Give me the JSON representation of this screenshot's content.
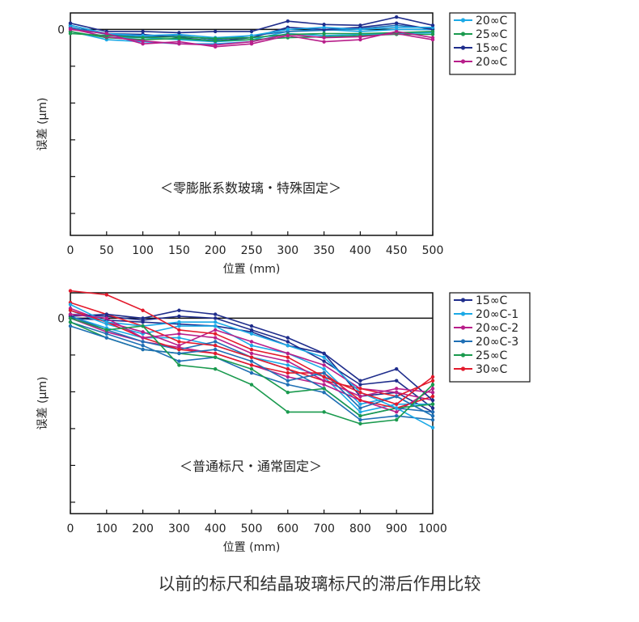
{
  "caption": "以前的标尺和结晶玻璃标尺的滞后作用比较",
  "chart_data": [
    {
      "type": "line",
      "annotation": "＜零膨胀系数玻璃・特殊固定＞",
      "xlabel": "位置 (mm)",
      "ylabel": "误差 (μm)",
      "y_tick_label": "0",
      "x": [
        0,
        50,
        100,
        150,
        200,
        250,
        300,
        350,
        400,
        450,
        500
      ],
      "xlim": [
        0,
        500
      ],
      "ylim": [
        -5,
        0.4
      ],
      "grid": false,
      "legend_position": "right-top",
      "series": [
        {
          "name": "20∞C",
          "color": "#1ba9e6",
          "values": [
            0.1,
            -0.1,
            -0.15,
            -0.12,
            -0.2,
            -0.15,
            0.0,
            0.05,
            0.0,
            0.05,
            0.05
          ]
        },
        {
          "name": "25∞C",
          "color": "#1a9a4e",
          "values": [
            -0.1,
            -0.15,
            -0.2,
            -0.18,
            -0.22,
            -0.2,
            -0.12,
            -0.1,
            -0.1,
            -0.08,
            -0.05
          ]
        },
        {
          "name": "15∞C",
          "color": "#1f2d8c",
          "values": [
            0.15,
            -0.05,
            -0.05,
            -0.08,
            -0.05,
            -0.05,
            0.2,
            0.12,
            0.1,
            0.3,
            0.1
          ]
        },
        {
          "name": "20∞C",
          "color": "#b81e8a",
          "values": [
            0.0,
            -0.1,
            -0.35,
            -0.3,
            -0.42,
            -0.35,
            -0.15,
            -0.3,
            -0.25,
            -0.05,
            -0.2
          ]
        }
      ],
      "extra_traces": [
        {
          "color": "#1ba9e6",
          "values": [
            0.05,
            -0.2,
            -0.2,
            -0.25,
            -0.3,
            -0.25,
            -0.05,
            0.0,
            -0.05,
            0.0,
            0.0
          ]
        },
        {
          "color": "#1ba9e6",
          "values": [
            -0.05,
            -0.25,
            -0.3,
            -0.35,
            -0.35,
            -0.3,
            -0.1,
            -0.15,
            -0.12,
            -0.1,
            -0.08
          ]
        },
        {
          "color": "#1f6fb5",
          "values": [
            0.05,
            -0.12,
            -0.18,
            -0.15,
            -0.25,
            -0.15,
            -0.05,
            -0.02,
            0.02,
            0.1,
            0.02
          ]
        },
        {
          "color": "#1f2d8c",
          "values": [
            0.1,
            -0.1,
            -0.12,
            -0.2,
            -0.28,
            -0.2,
            0.05,
            0.0,
            0.05,
            0.15,
            0.0
          ]
        },
        {
          "color": "#1a9a4e",
          "values": [
            -0.05,
            -0.2,
            -0.25,
            -0.22,
            -0.28,
            -0.25,
            -0.2,
            -0.18,
            -0.15,
            -0.12,
            -0.12
          ]
        },
        {
          "color": "#b81e8a",
          "values": [
            0.02,
            -0.18,
            -0.28,
            -0.35,
            -0.38,
            -0.3,
            -0.12,
            -0.2,
            -0.18,
            -0.1,
            -0.25
          ]
        }
      ]
    },
    {
      "type": "line",
      "annotation": "＜普通标尺・通常固定＞",
      "xlabel": "位置 (mm)",
      "ylabel": "误差 (μm)",
      "y_tick_label": "0",
      "x": [
        0,
        100,
        200,
        300,
        400,
        500,
        600,
        700,
        800,
        900,
        1000
      ],
      "xlim": [
        0,
        1000
      ],
      "ylim": [
        -5,
        0.65
      ],
      "grid": false,
      "legend_position": "right-top",
      "series": [
        {
          "name": "15∞C",
          "color": "#1f2d8c",
          "values": [
            0.05,
            0.1,
            0.0,
            0.2,
            0.1,
            -0.2,
            -0.5,
            -0.9,
            -1.6,
            -1.3,
            -2.1
          ]
        },
        {
          "name": "20∞C-1",
          "color": "#1ba9e6",
          "values": [
            0.35,
            -0.1,
            -0.2,
            -0.1,
            -0.1,
            -0.4,
            -0.7,
            -1.0,
            -1.9,
            -2.3,
            -2.8
          ]
        },
        {
          "name": "20∞C-2",
          "color": "#b81e8a",
          "values": [
            0.1,
            0.0,
            -0.5,
            -0.4,
            -0.5,
            -0.9,
            -1.1,
            -1.6,
            -2.0,
            -1.8,
            -1.9
          ]
        },
        {
          "name": "20∞C-3",
          "color": "#1f6fb5",
          "values": [
            -0.2,
            -0.5,
            -0.8,
            -0.9,
            -0.8,
            -1.1,
            -1.6,
            -1.4,
            -2.3,
            -2.0,
            -2.5
          ]
        },
        {
          "name": "25∞C",
          "color": "#1a9a4e",
          "values": [
            0.0,
            -0.3,
            -0.2,
            -1.2,
            -1.3,
            -1.7,
            -2.4,
            -2.4,
            -2.7,
            -2.6,
            -1.7
          ]
        },
        {
          "name": "30∞C",
          "color": "#e31a2c",
          "values": [
            0.7,
            0.6,
            0.2,
            -0.3,
            -0.4,
            -0.8,
            -1.0,
            -1.5,
            -1.9,
            -2.2,
            -1.5
          ]
        }
      ],
      "extra_traces": [
        {
          "color": "#1f2d8c",
          "values": [
            0.1,
            0.05,
            -0.05,
            0.05,
            0.0,
            -0.3,
            -0.6,
            -1.1,
            -1.7,
            -1.6,
            -2.3
          ]
        },
        {
          "color": "#1f2d8c",
          "values": [
            0.0,
            -0.05,
            -0.1,
            -0.15,
            -0.2,
            -0.35,
            -0.7,
            -0.9,
            -2.0,
            -1.9,
            -2.4
          ]
        },
        {
          "color": "#1ba9e6",
          "values": [
            0.2,
            -0.15,
            -0.4,
            -0.2,
            -0.2,
            -0.7,
            -0.9,
            -1.3,
            -2.2,
            -2.0,
            -2.5
          ]
        },
        {
          "color": "#1ba9e6",
          "values": [
            0.05,
            -0.25,
            -0.5,
            -0.5,
            -0.7,
            -1.0,
            -1.2,
            -1.5,
            -2.4,
            -2.2,
            -2.2
          ]
        },
        {
          "color": "#b81e8a",
          "values": [
            0.25,
            -0.1,
            -0.35,
            -0.7,
            -0.3,
            -0.6,
            -0.9,
            -1.2,
            -1.8,
            -1.9,
            -2.1
          ]
        },
        {
          "color": "#b81e8a",
          "values": [
            0.0,
            -0.35,
            -0.6,
            -0.75,
            -0.9,
            -1.2,
            -1.5,
            -1.7,
            -2.1,
            -2.4,
            -1.8
          ]
        },
        {
          "color": "#1f6fb5",
          "values": [
            -0.1,
            -0.4,
            -0.7,
            -1.1,
            -1.0,
            -1.4,
            -1.7,
            -1.9,
            -2.6,
            -2.5,
            -2.6
          ]
        },
        {
          "color": "#1f6fb5",
          "values": [
            0.05,
            -0.3,
            -0.6,
            -0.8,
            -0.6,
            -1.0,
            -1.3,
            -1.8,
            -2.5,
            -2.3,
            -2.4
          ]
        },
        {
          "color": "#1a9a4e",
          "values": [
            -0.1,
            -0.5,
            -0.8,
            -0.9,
            -1.0,
            -1.3,
            -1.9,
            -1.8,
            -2.5,
            -2.3,
            -2.2
          ]
        },
        {
          "color": "#e31a2c",
          "values": [
            0.4,
            0.1,
            -0.2,
            -0.6,
            -0.7,
            -1.0,
            -1.3,
            -1.6,
            -1.8,
            -2.0,
            -1.6
          ]
        },
        {
          "color": "#e31a2c",
          "values": [
            0.2,
            -0.1,
            -0.5,
            -0.8,
            -0.9,
            -1.2,
            -1.4,
            -1.4,
            -2.1,
            -2.3,
            -2.0
          ]
        }
      ]
    }
  ]
}
